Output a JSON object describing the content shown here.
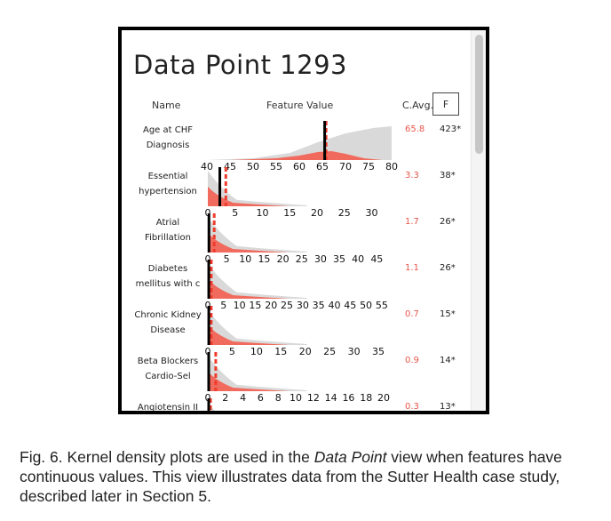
{
  "panel": {
    "title": "Data Point 1293",
    "headers": {
      "name": "Name",
      "feature_value": "Feature Value",
      "cavg": "C.Avg.",
      "f": "F"
    }
  },
  "features": [
    {
      "name": "Age at CHF\nDiagnosis",
      "cavg": "65.8",
      "f": "423*",
      "value": 65.5,
      "avg": 65.8,
      "ticks": [
        "40",
        "45",
        "50",
        "55",
        "60",
        "65",
        "70",
        "75",
        "80"
      ],
      "tick_values": [
        40,
        45,
        50,
        55,
        60,
        65,
        70,
        75,
        80
      ],
      "range": [
        40,
        80
      ]
    },
    {
      "name": "Essential\nhypertension",
      "cavg": "3.3",
      "f": "38*",
      "value": 2.2,
      "avg": 3.3,
      "ticks": [
        "0",
        "5",
        "10",
        "15",
        "20",
        "25",
        "30"
      ],
      "tick_values": [
        0,
        5,
        10,
        15,
        20,
        25,
        30
      ],
      "range": [
        0,
        33
      ]
    },
    {
      "name": "Atrial\nFibrillation",
      "cavg": "1.7",
      "f": "26*",
      "value": 0.3,
      "avg": 1.7,
      "ticks": [
        "0",
        "5",
        "10",
        "15",
        "20",
        "25",
        "30",
        "35",
        "40",
        "45"
      ],
      "tick_values": [
        0,
        5,
        10,
        15,
        20,
        25,
        30,
        35,
        40,
        45
      ],
      "range": [
        0,
        48
      ]
    },
    {
      "name": "Diabetes\nmellitus with c",
      "cavg": "1.1",
      "f": "26*",
      "value": 0.3,
      "avg": 1.1,
      "ticks": [
        "0",
        "5",
        "10",
        "15",
        "20",
        "25",
        "30",
        "35",
        "40",
        "45",
        "50",
        "55"
      ],
      "tick_values": [
        0,
        5,
        10,
        15,
        20,
        25,
        30,
        35,
        40,
        45,
        50,
        55
      ],
      "range": [
        0,
        57
      ]
    },
    {
      "name": "Chronic Kidney\nDisease",
      "cavg": "0.7",
      "f": "15*",
      "value": 0.2,
      "avg": 0.7,
      "ticks": [
        "0",
        "5",
        "10",
        "15",
        "20",
        "25",
        "30",
        "35"
      ],
      "tick_values": [
        0,
        5,
        10,
        15,
        20,
        25,
        30,
        35
      ],
      "range": [
        0,
        37
      ]
    },
    {
      "name": "Beta Blockers\nCardio-Sel",
      "cavg": "0.9",
      "f": "14*",
      "value": 0.1,
      "avg": 0.9,
      "ticks": [
        "0",
        "2",
        "4",
        "6",
        "8",
        "10",
        "12",
        "14",
        "16",
        "18",
        "20"
      ],
      "tick_values": [
        0,
        2,
        4,
        6,
        8,
        10,
        12,
        14,
        16,
        18,
        20
      ],
      "range": [
        0,
        20.5
      ]
    },
    {
      "name": "Angiotensin II",
      "cavg": "0.3",
      "f": "13*",
      "value": 0.1,
      "avg": 0.3,
      "ticks": [],
      "tick_values": [],
      "range": [
        0,
        20
      ]
    }
  ],
  "caption": {
    "prefix": "Fig. 6. Kernel density plots are used in the ",
    "italic": "Data Point",
    "suffix": " view when features have continuous values. This view illustrates data from the Sutter Health case study, described later in Section 5."
  },
  "colors": {
    "accent": "#e8574a",
    "density_red": "#f06b5e",
    "density_gray": "#d9d9d9",
    "marker": "#000000"
  }
}
